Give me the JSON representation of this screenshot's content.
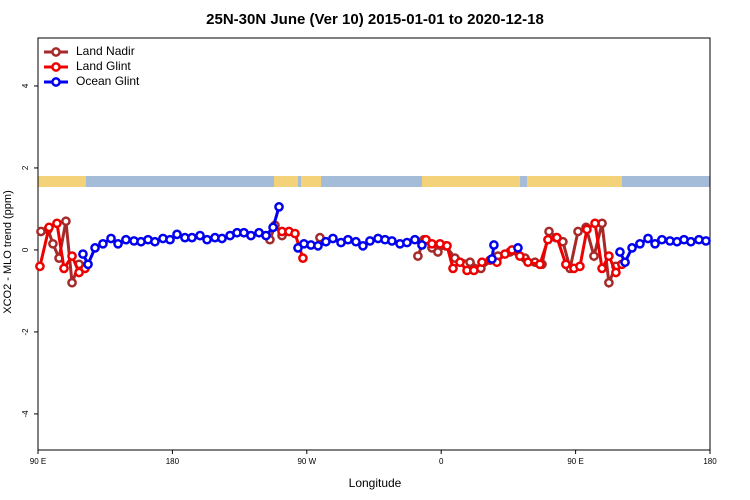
{
  "chart_data": {
    "type": "line",
    "title": "25N-30N June (Ver 10)   2015-01-01 to 2020-12-18",
    "x_label": "Longitude",
    "y_label": "XCO2 - MLO trend (ppm)",
    "xlim": [
      90,
      540
    ],
    "xticks": [
      {
        "value": 90,
        "label": "90 E"
      },
      {
        "value": 180,
        "label": "180"
      },
      {
        "value": 270,
        "label": "90 W"
      },
      {
        "value": 360,
        "label": "0"
      },
      {
        "value": 450,
        "label": "90 E"
      },
      {
        "value": 540,
        "label": "180"
      }
    ],
    "ylim": [
      -4.88,
      5.17
    ],
    "yticks": [
      -4,
      -2,
      0,
      2,
      4
    ],
    "legend": "upper left",
    "series": [
      {
        "name": "Land Nadir",
        "color": "#a52a2a",
        "x": [
          92.0,
          96.7,
          100.0,
          104.1,
          108.7,
          112.8,
          117.5,
          null,
          245.3,
          248.7,
          253.4,
          null,
          278.8,
          null,
          344.4,
          348.5,
          353.8,
          357.8,
          363.2,
          369.2,
          379.3,
          386.6,
          398,
          406,
          416.1,
          422.8,
          427.5,
          432.2,
          436.9,
          441.5,
          446.3,
          451.6,
          457,
          462.3,
          467.7,
          472.3,
          477
        ],
        "values": [
          0.45,
          0.5,
          0.15,
          -0.2,
          0.7,
          -0.8,
          -0.35,
          null,
          0.25,
          0.6,
          0.35,
          null,
          0.3,
          null,
          -0.15,
          0.25,
          0.05,
          -0.05,
          0.1,
          -0.2,
          -0.3,
          -0.45,
          -0.15,
          -0.05,
          -0.2,
          -0.3,
          -0.35,
          0.45,
          0.3,
          0.2,
          -0.45,
          0.45,
          0.55,
          -0.15,
          0.65,
          -0.8,
          -0.4
        ]
      },
      {
        "name": "Land Glint",
        "color": "#ee0000",
        "x": [
          91.3,
          97.4,
          102.7,
          107.4,
          112.8,
          117.5,
          121.5,
          null,
          253.4,
          258.1,
          262.1,
          267.4,
          null,
          349.8,
          353.8,
          359.2,
          363.9,
          367.9,
          372.6,
          377.3,
          381.9,
          387.3,
          392.7,
          397.3,
          402.7,
          407.4,
          412.7,
          418.1,
          426.1,
          431.5,
          437.5,
          443.5,
          448.9,
          452.9,
          457.6,
          463,
          467.7,
          472.3,
          477,
          481
        ],
        "values": [
          -0.4,
          0.55,
          0.65,
          -0.45,
          -0.15,
          -0.55,
          -0.45,
          null,
          0.45,
          0.45,
          0.4,
          -0.2,
          null,
          0.25,
          0.15,
          0.15,
          0.1,
          -0.45,
          -0.3,
          -0.5,
          -0.5,
          -0.3,
          -0.25,
          -0.3,
          -0.1,
          0.0,
          -0.15,
          -0.3,
          -0.35,
          0.25,
          0.3,
          -0.35,
          -0.45,
          -0.4,
          0.5,
          0.65,
          -0.45,
          -0.15,
          -0.55,
          -0.35
        ]
      },
      {
        "name": "Ocean Glint",
        "color": "#0000ee",
        "x": [
          120.1,
          123.5,
          128.2,
          133.5,
          138.9,
          143.6,
          148.9,
          154.3,
          159,
          163.7,
          168.3,
          173.7,
          178.4,
          183.1,
          188.4,
          193.1,
          198.5,
          203.2,
          208.5,
          213.2,
          218.6,
          223.3,
          227.9,
          232.6,
          238,
          242.7,
          247.4,
          251.4,
          null,
          264.1,
          268.1,
          272.8,
          277.5,
          282.8,
          287.5,
          292.9,
          297.6,
          302.9,
          307.6,
          312.3,
          317.7,
          322.4,
          327,
          332.4,
          337.1,
          342.4,
          347.1,
          null,
          394,
          395.3,
          null,
          411.4,
          null,
          479.7,
          483.1,
          487.8,
          493.1,
          498.5,
          503.2,
          507.8,
          513.2,
          517.9,
          522.6,
          527.2,
          532.6,
          537.3
        ],
        "values": [
          -0.1,
          -0.35,
          0.05,
          0.15,
          0.28,
          0.15,
          0.25,
          0.22,
          0.2,
          0.25,
          0.2,
          0.28,
          0.25,
          0.38,
          0.3,
          0.3,
          0.35,
          0.25,
          0.3,
          0.28,
          0.35,
          0.42,
          0.42,
          0.35,
          0.42,
          0.35,
          0.55,
          1.05,
          null,
          0.05,
          0.15,
          0.12,
          0.1,
          0.2,
          0.28,
          0.18,
          0.25,
          0.2,
          0.1,
          0.22,
          0.28,
          0.25,
          0.22,
          0.15,
          0.18,
          0.25,
          0.12,
          null,
          -0.22,
          0.12,
          null,
          0.05,
          null,
          -0.05,
          -0.3,
          0.05,
          0.15,
          0.28,
          0.15,
          0.25,
          0.22,
          0.2,
          0.25,
          0.2,
          0.25,
          0.22
        ]
      }
    ]
  }
}
